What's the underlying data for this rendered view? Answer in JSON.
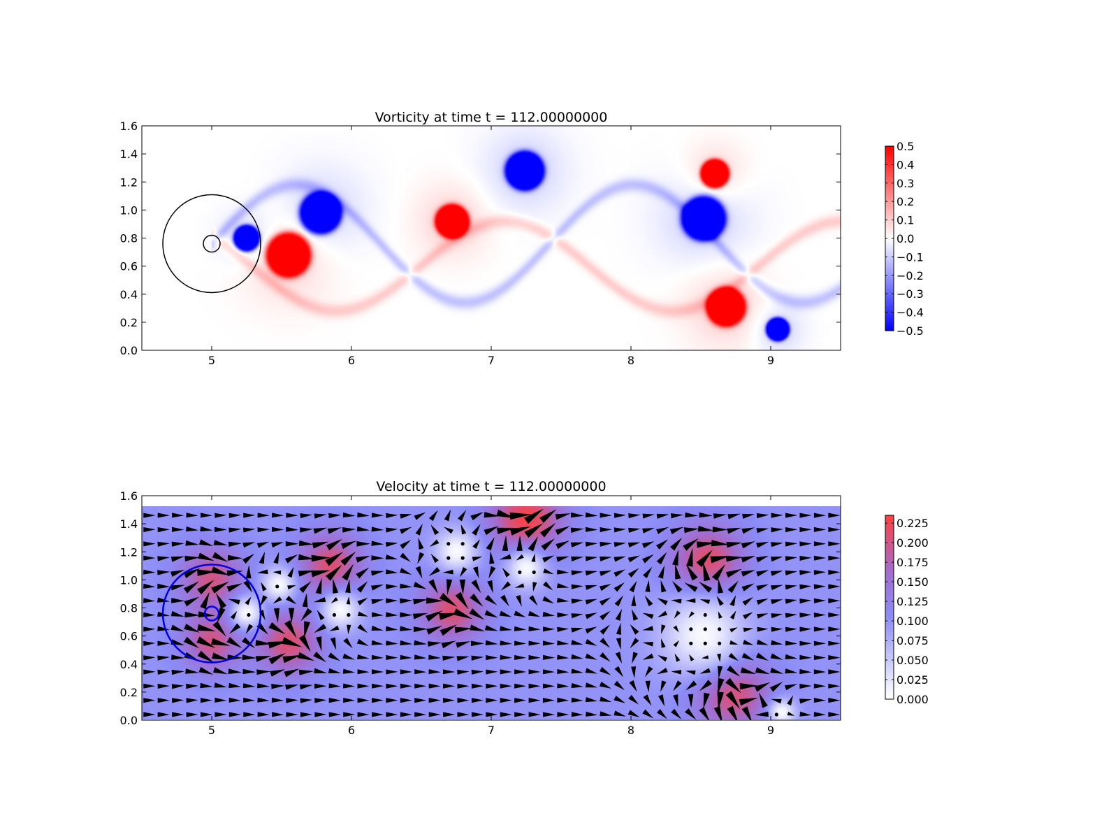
{
  "chart_data": [
    {
      "type": "heatmap",
      "title": "Vorticity at time t =   112.00000000",
      "xlabel": "",
      "ylabel": "",
      "xlim": [
        4.5,
        9.5
      ],
      "ylim": [
        0.0,
        1.6
      ],
      "x_ticks": [
        "5",
        "6",
        "7",
        "8",
        "9"
      ],
      "y_ticks": [
        "0.0",
        "0.2",
        "0.4",
        "0.6",
        "0.8",
        "1.0",
        "1.2",
        "1.4",
        "1.6"
      ],
      "colorbar": {
        "min": -0.5,
        "max": 0.5,
        "colormap": "bwr",
        "ticks": [
          "−0.5",
          "−0.4",
          "−0.3",
          "−0.2",
          "−0.1",
          "0.0",
          "0.1",
          "0.2",
          "0.3",
          "0.4",
          "0.5"
        ]
      },
      "grid": false,
      "vortices": [
        {
          "x": 5.25,
          "y": 0.8,
          "r": 0.1,
          "w": -0.5
        },
        {
          "x": 5.55,
          "y": 0.68,
          "r": 0.17,
          "w": 0.5
        },
        {
          "x": 5.78,
          "y": 0.98,
          "r": 0.16,
          "w": -0.5
        },
        {
          "x": 6.72,
          "y": 0.92,
          "r": 0.13,
          "w": 0.5
        },
        {
          "x": 7.24,
          "y": 1.28,
          "r": 0.15,
          "w": -0.5
        },
        {
          "x": 8.6,
          "y": 1.26,
          "r": 0.11,
          "w": 0.5
        },
        {
          "x": 8.52,
          "y": 0.94,
          "r": 0.17,
          "w": -0.5
        },
        {
          "x": 8.68,
          "y": 0.31,
          "r": 0.15,
          "w": 0.5
        },
        {
          "x": 9.05,
          "y": 0.15,
          "r": 0.09,
          "w": -0.5
        }
      ],
      "circles": [
        {
          "x": 5.0,
          "y": 0.76,
          "r": 0.35,
          "color": "#000000"
        },
        {
          "x": 5.0,
          "y": 0.76,
          "r": 0.06,
          "color": "#000000"
        }
      ]
    },
    {
      "type": "heatmap",
      "title": "Velocity at time t =   112.00000000",
      "xlabel": "",
      "ylabel": "",
      "xlim": [
        4.5,
        9.5
      ],
      "ylim": [
        0.0,
        1.6
      ],
      "data_ymax": 1.52,
      "x_ticks": [
        "5",
        "6",
        "7",
        "8",
        "9"
      ],
      "y_ticks": [
        "0.0",
        "0.2",
        "0.4",
        "0.6",
        "0.8",
        "1.0",
        "1.2",
        "1.4",
        "1.6"
      ],
      "colorbar": {
        "min": 0.0,
        "max": 0.235,
        "colormap": "white-blue-red",
        "ticks": [
          "0.000",
          "0.025",
          "0.050",
          "0.075",
          "0.100",
          "0.125",
          "0.150",
          "0.175",
          "0.200",
          "0.225"
        ]
      },
      "background_speed": 0.1,
      "overlay": "quiver",
      "grid": false,
      "fast_zones": [
        {
          "x": 5.0,
          "y": 1.0,
          "r": 0.22,
          "s": 0.2
        },
        {
          "x": 5.0,
          "y": 0.55,
          "r": 0.2,
          "s": 0.2
        },
        {
          "x": 5.55,
          "y": 0.55,
          "r": 0.22,
          "s": 0.21
        },
        {
          "x": 5.85,
          "y": 1.1,
          "r": 0.22,
          "s": 0.21
        },
        {
          "x": 6.72,
          "y": 0.78,
          "r": 0.22,
          "s": 0.21
        },
        {
          "x": 7.25,
          "y": 1.43,
          "r": 0.25,
          "s": 0.23
        },
        {
          "x": 8.55,
          "y": 1.12,
          "r": 0.25,
          "s": 0.22
        },
        {
          "x": 8.72,
          "y": 0.2,
          "r": 0.26,
          "s": 0.22
        }
      ],
      "still_zones": [
        {
          "x": 5.25,
          "y": 0.76,
          "r": 0.12
        },
        {
          "x": 5.48,
          "y": 0.96,
          "r": 0.12
        },
        {
          "x": 5.92,
          "y": 0.78,
          "r": 0.14
        },
        {
          "x": 6.75,
          "y": 1.2,
          "r": 0.15
        },
        {
          "x": 7.25,
          "y": 1.08,
          "r": 0.14
        },
        {
          "x": 8.52,
          "y": 0.6,
          "r": 0.3
        },
        {
          "x": 9.08,
          "y": 0.05,
          "r": 0.1
        }
      ],
      "circles": [
        {
          "x": 5.0,
          "y": 0.76,
          "r": 0.35,
          "color": "#0000dd"
        },
        {
          "x": 5.0,
          "y": 0.76,
          "r": 0.05,
          "color": "#0000dd"
        }
      ]
    }
  ]
}
